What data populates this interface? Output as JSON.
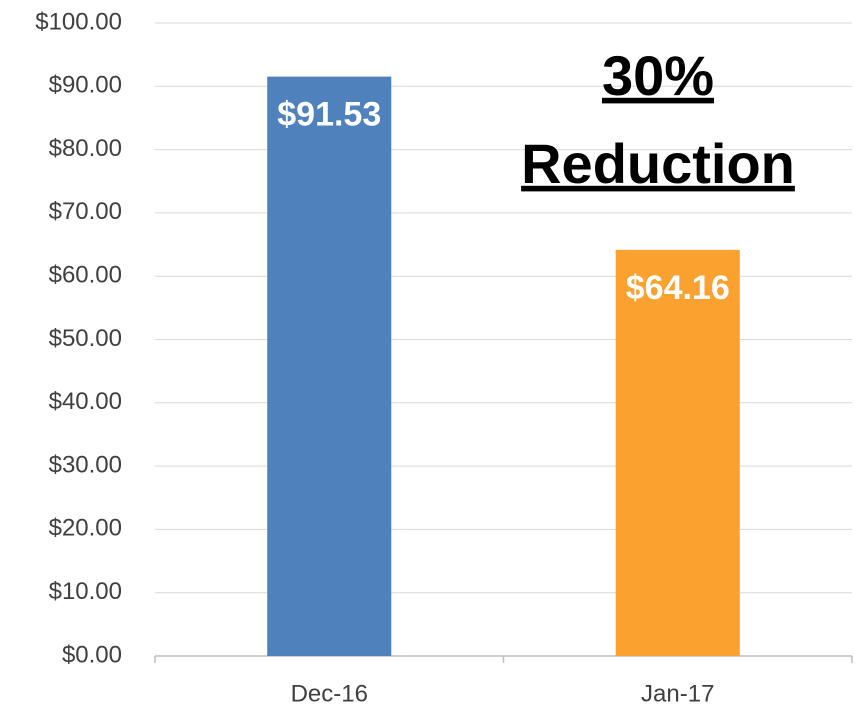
{
  "chart_data": {
    "type": "bar",
    "categories": [
      "Dec-16",
      "Jan-17"
    ],
    "values": [
      91.53,
      64.16
    ],
    "value_labels": [
      "$91.53",
      "$64.16"
    ],
    "colors": [
      "#4f81bd",
      "#fba12f"
    ],
    "annotation": [
      "30%",
      "Reduction"
    ],
    "ylim": [
      0,
      100
    ],
    "yticks": [
      {
        "value": 0,
        "label": "$0.00"
      },
      {
        "value": 10,
        "label": "$10.00"
      },
      {
        "value": 20,
        "label": "$20.00"
      },
      {
        "value": 30,
        "label": "$30.00"
      },
      {
        "value": 40,
        "label": "$40.00"
      },
      {
        "value": 50,
        "label": "$50.00"
      },
      {
        "value": 60,
        "label": "$60.00"
      },
      {
        "value": 70,
        "label": "$70.00"
      },
      {
        "value": 80,
        "label": "$80.00"
      },
      {
        "value": 90,
        "label": "$90.00"
      },
      {
        "value": 100,
        "label": "$100.00"
      }
    ],
    "grid": true
  }
}
